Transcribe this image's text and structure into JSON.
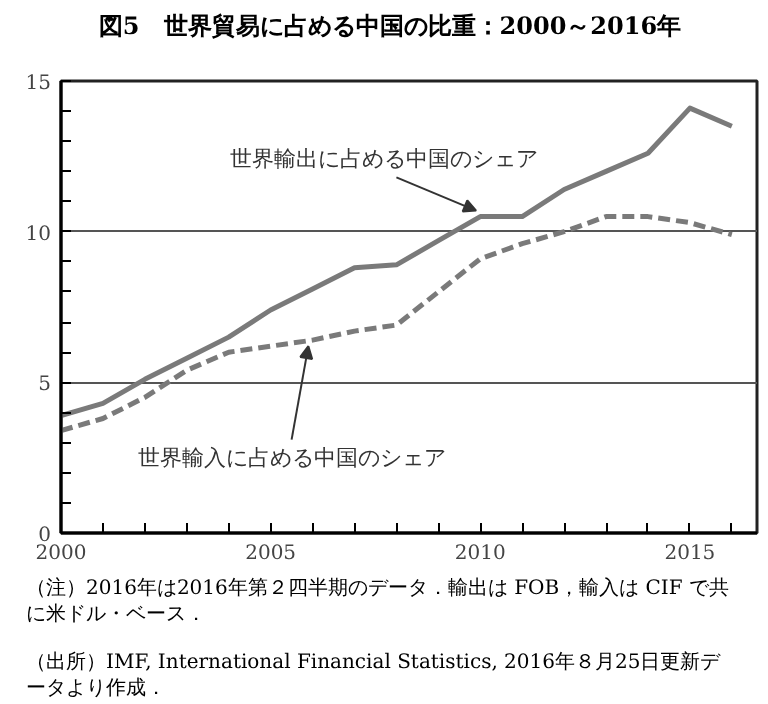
{
  "chart_data": {
    "type": "line",
    "title": "図5　世界貿易に占める中国の比重：2000～2016年",
    "x": [
      2000,
      2001,
      2002,
      2003,
      2004,
      2005,
      2006,
      2007,
      2008,
      2009,
      2010,
      2011,
      2012,
      2013,
      2014,
      2015,
      2016
    ],
    "series": [
      {
        "name": "世界輸出に占める中国のシェア",
        "color": "#7a7a7a",
        "line_style": "solid",
        "values": [
          3.9,
          4.3,
          5.1,
          5.8,
          6.5,
          7.4,
          8.1,
          8.8,
          8.9,
          9.7,
          10.5,
          10.5,
          11.4,
          12.0,
          12.6,
          14.1,
          13.5
        ]
      },
      {
        "name": "世界輸入に占める中国のシェア",
        "color": "#7a7a7a",
        "line_style": "dashed",
        "values": [
          3.4,
          3.8,
          4.5,
          5.4,
          6.0,
          6.2,
          6.4,
          6.7,
          6.9,
          8.0,
          9.1,
          9.6,
          10.0,
          10.5,
          10.5,
          10.3,
          9.9
        ]
      }
    ],
    "xlim": [
      2000,
      2016.6
    ],
    "ylim": [
      0,
      15
    ],
    "xticks": [
      2000,
      {
        "value": 2001,
        "label": null
      },
      {
        "value": 2002,
        "label": null
      },
      {
        "value": 2003,
        "label": null
      },
      {
        "value": 2004,
        "label": null
      },
      2005,
      {
        "value": 2006,
        "label": null
      },
      {
        "value": 2007,
        "label": null
      },
      {
        "value": 2008,
        "label": null
      },
      {
        "value": 2009,
        "label": null
      },
      2010,
      {
        "value": 2011,
        "label": null
      },
      {
        "value": 2012,
        "label": null
      },
      {
        "value": 2013,
        "label": null
      },
      {
        "value": 2014,
        "label": null
      },
      2015,
      {
        "value": 2016,
        "label": null
      }
    ],
    "yticks": [
      0,
      {
        "value": 1,
        "label": null
      },
      {
        "value": 2,
        "label": null
      },
      {
        "value": 3,
        "label": null
      },
      {
        "value": 4,
        "label": null
      },
      5,
      {
        "value": 6,
        "label": null
      },
      {
        "value": 7,
        "label": null
      },
      {
        "value": 8,
        "label": null
      },
      {
        "value": 9,
        "label": null
      },
      10,
      {
        "value": 11,
        "label": null
      },
      {
        "value": 12,
        "label": null
      },
      {
        "value": 13,
        "label": null
      },
      {
        "value": 14,
        "label": null
      },
      15
    ],
    "grid": "y",
    "legend": false,
    "annotations": [
      "（注）2016年は2016年第２四半期のデータ．輸出は FOB，輸入は CIF で共に米ドル・ベース．",
      "（出所）IMF, International Financial Statistics, 2016年８月25日更新データより作成．"
    ]
  }
}
